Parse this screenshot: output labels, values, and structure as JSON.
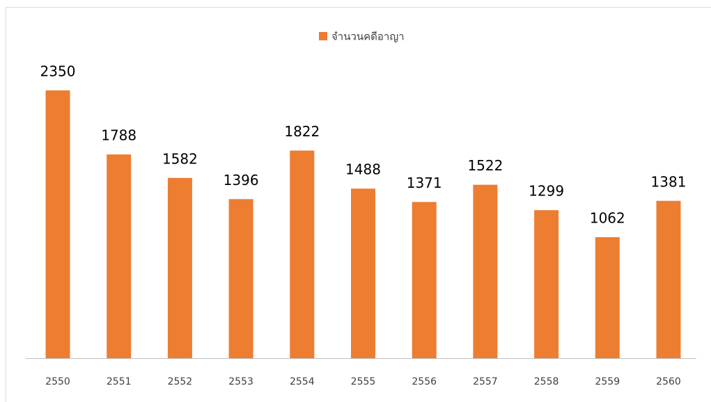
{
  "chart_data": {
    "type": "bar",
    "legend": "จำนวนคดีอาญา",
    "categories": [
      "2550",
      "2551",
      "2552",
      "2553",
      "2554",
      "2555",
      "2556",
      "2557",
      "2558",
      "2559",
      "2560"
    ],
    "values": [
      2350,
      1788,
      1582,
      1396,
      1822,
      1488,
      1371,
      1522,
      1299,
      1062,
      1381
    ],
    "color": "#ed7d31",
    "legend_position": "top"
  }
}
